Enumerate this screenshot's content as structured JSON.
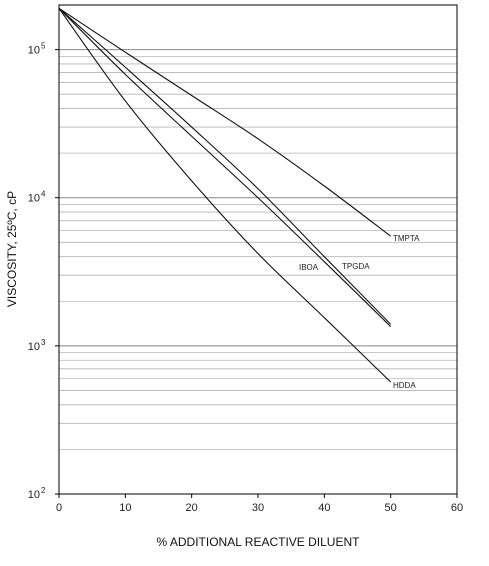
{
  "chart_data": {
    "type": "line",
    "xlabel": "% ADDITIONAL REACTIVE DILUENT",
    "ylabel": "VISCOSITY, 25ºC, cP",
    "xlim": [
      0,
      60
    ],
    "ylim": [
      100,
      200000
    ],
    "yscale": "log",
    "grid": "horizontal minor and major lines on y",
    "x_ticks": [
      "0",
      "10",
      "20",
      "30",
      "40",
      "50",
      "60"
    ],
    "y_ticks": [
      {
        "base": "10",
        "exp": "2",
        "value": 100
      },
      {
        "base": "10",
        "exp": "3",
        "value": 1000
      },
      {
        "base": "10",
        "exp": "4",
        "value": 10000
      },
      {
        "base": "10",
        "exp": "5",
        "value": 100000
      }
    ],
    "series": [
      {
        "name": "TMPTA",
        "x": [
          0,
          10,
          20,
          30,
          40,
          50
        ],
        "y": [
          190000,
          96000,
          49000,
          25000,
          12000,
          5500
        ]
      },
      {
        "name": "TPGDA",
        "x": [
          0,
          10,
          20,
          30,
          40,
          50
        ],
        "y": [
          190000,
          76000,
          30000,
          11500,
          4000,
          1400
        ]
      },
      {
        "name": "IBOA",
        "x": [
          0,
          10,
          20,
          30,
          40,
          50
        ],
        "y": [
          190000,
          68000,
          26000,
          10000,
          3700,
          1350
        ]
      },
      {
        "name": "HDDA",
        "x": [
          0,
          10,
          20,
          30,
          40,
          50
        ],
        "y": [
          190000,
          45000,
          13000,
          4200,
          1550,
          570
        ]
      }
    ],
    "series_labels": [
      {
        "name": "TMPTA",
        "text": "TMPTA"
      },
      {
        "name": "TPGDA",
        "text": "TPGDA"
      },
      {
        "name": "IBOA",
        "text": "IBOA"
      },
      {
        "name": "HDDA",
        "text": "HDDA"
      }
    ]
  }
}
